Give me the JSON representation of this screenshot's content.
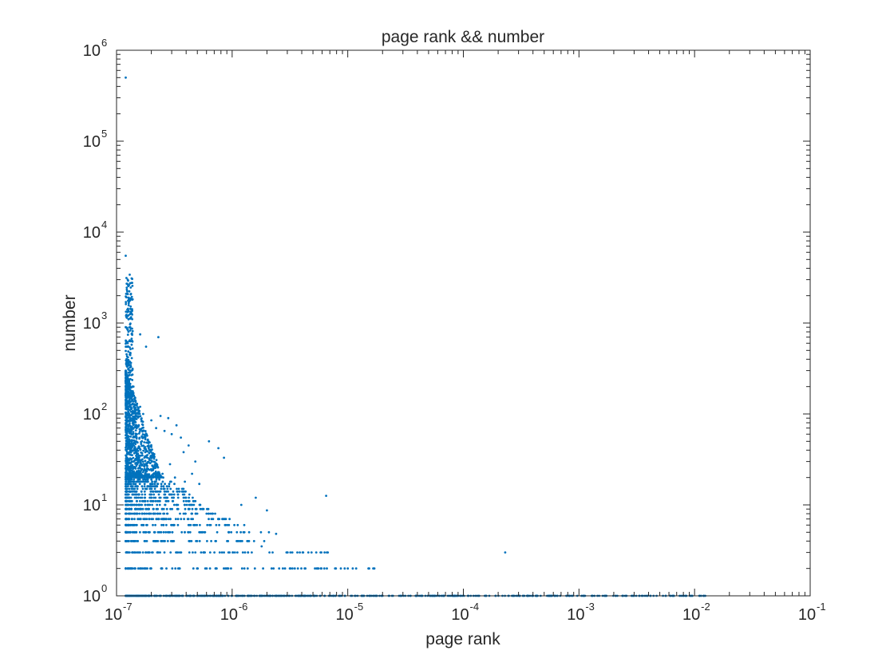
{
  "chart_data": {
    "type": "scatter",
    "title": "page rank && number",
    "xlabel": "page rank",
    "ylabel": "number",
    "xscale": "log",
    "yscale": "log",
    "xlim": [
      1e-07,
      0.1
    ],
    "ylim": [
      1,
      1000000
    ],
    "x_ticks": [
      {
        "value": 1e-07,
        "base": "10",
        "exp": "-7"
      },
      {
        "value": 1e-06,
        "base": "10",
        "exp": "-6"
      },
      {
        "value": 1e-05,
        "base": "10",
        "exp": "-5"
      },
      {
        "value": 0.0001,
        "base": "10",
        "exp": "-4"
      },
      {
        "value": 0.001,
        "base": "10",
        "exp": "-3"
      },
      {
        "value": 0.01,
        "base": "10",
        "exp": "-2"
      },
      {
        "value": 0.1,
        "base": "10",
        "exp": "-1"
      }
    ],
    "y_ticks": [
      {
        "value": 1,
        "base": "10",
        "exp": "0"
      },
      {
        "value": 10,
        "base": "10",
        "exp": "1"
      },
      {
        "value": 100,
        "base": "10",
        "exp": "2"
      },
      {
        "value": 1000,
        "base": "10",
        "exp": "3"
      },
      {
        "value": 10000,
        "base": "10",
        "exp": "4"
      },
      {
        "value": 100000,
        "base": "10",
        "exp": "5"
      },
      {
        "value": 1000000,
        "base": "10",
        "exp": "6"
      }
    ],
    "grid": false,
    "marker_color": "#0072BD",
    "series": [
      {
        "points": [
          [
            1.2e-07,
            500000
          ],
          [
            1.2e-07,
            5500
          ],
          [
            1.25e-07,
            3000
          ],
          [
            1.3e-07,
            3400
          ],
          [
            1.35e-07,
            3100
          ],
          [
            1.28e-07,
            2600
          ],
          [
            1.22e-07,
            2100
          ],
          [
            1.3e-07,
            1800
          ],
          [
            1.24e-07,
            1400
          ],
          [
            1.27e-07,
            1100
          ],
          [
            1.2e-07,
            900
          ],
          [
            1.6e-07,
            750
          ],
          [
            2.3e-07,
            700
          ],
          [
            1.8e-07,
            550
          ],
          [
            1.25e-07,
            600
          ],
          [
            1.3e-07,
            450
          ],
          [
            1.22e-07,
            380
          ],
          [
            1.35e-07,
            300
          ],
          [
            1.28e-07,
            240
          ],
          [
            1.4e-07,
            200
          ],
          [
            1.3e-07,
            170
          ],
          [
            1.45e-07,
            150
          ],
          [
            1.6e-07,
            120
          ],
          [
            1.7e-07,
            100
          ],
          [
            2e-07,
            85
          ],
          [
            2.4e-07,
            95
          ],
          [
            2.8e-07,
            90
          ],
          [
            3.3e-07,
            75
          ],
          [
            2.6e-07,
            65
          ],
          [
            2.2e-07,
            70
          ],
          [
            3e-07,
            60
          ],
          [
            3.6e-07,
            55
          ],
          [
            4.2e-07,
            45
          ],
          [
            6.3e-07,
            50
          ],
          [
            7.6e-07,
            42
          ],
          [
            8.5e-07,
            33
          ],
          [
            4.8e-07,
            30
          ],
          [
            3.8e-07,
            38
          ],
          [
            2.9e-07,
            28
          ],
          [
            2.1e-07,
            35
          ],
          [
            1.5e-07,
            60
          ],
          [
            1.9e-07,
            45
          ],
          [
            2.5e-07,
            22
          ],
          [
            3.2e-07,
            20
          ],
          [
            3.9e-07,
            18
          ],
          [
            4.5e-07,
            22
          ],
          [
            5.2e-07,
            17
          ],
          [
            1.6e-06,
            12
          ],
          [
            1.2e-06,
            10
          ],
          [
            2e-06,
            8.7
          ],
          [
            6.5e-06,
            12.6
          ],
          [
            2.6e-07,
            14
          ],
          [
            3.4e-07,
            13
          ],
          [
            4e-07,
            11
          ],
          [
            5.5e-07,
            9
          ],
          [
            6.8e-07,
            8
          ],
          [
            9.5e-07,
            7
          ],
          [
            1.1e-06,
            5
          ],
          [
            2.4e-06,
            4.8
          ],
          [
            1.4e-06,
            4
          ],
          [
            1.8e-06,
            3.5
          ],
          [
            3e-06,
            3
          ],
          [
            6.6e-06,
            3
          ],
          [
            6.3e-06,
            3
          ],
          [
            0.00023,
            3
          ],
          [
            3.2e-06,
            2
          ],
          [
            4.3e-06,
            2
          ],
          [
            5.4e-06,
            2
          ],
          [
            6.6e-06,
            2
          ],
          [
            7.9e-06,
            2
          ],
          [
            9.4e-06,
            2
          ],
          [
            1e-05,
            2
          ],
          [
            1.7e-05,
            2
          ]
        ],
        "bands": [
          {
            "y": 1,
            "xmin": 1.2e-07,
            "xmax": 0.013
          },
          {
            "y": 2,
            "xmin": 1.2e-07,
            "xmax": 1.7e-05
          },
          {
            "y": 3,
            "xmin": 1.2e-07,
            "xmax": 8e-06
          },
          {
            "y": 4,
            "xmin": 1.2e-07,
            "xmax": 2.3e-06
          },
          {
            "y": 5,
            "xmin": 1.2e-07,
            "xmax": 2.4e-06
          },
          {
            "y": 6,
            "xmin": 1.2e-07,
            "xmax": 1.3e-06
          },
          {
            "y": 7,
            "xmin": 1.2e-07,
            "xmax": 1e-06
          },
          {
            "y": 8,
            "xmin": 1.2e-07,
            "xmax": 9e-07
          },
          {
            "y": 9,
            "xmin": 1.2e-07,
            "xmax": 7e-07
          },
          {
            "y": 10,
            "xmin": 1.2e-07,
            "xmax": 6e-07
          },
          {
            "y": 11,
            "xmin": 1.2e-07,
            "xmax": 5.5e-07
          },
          {
            "y": 12,
            "xmin": 1.2e-07,
            "xmax": 5e-07
          },
          {
            "y": 13,
            "xmin": 1.2e-07,
            "xmax": 4.5e-07
          },
          {
            "y": 14,
            "xmin": 1.2e-07,
            "xmax": 4e-07
          },
          {
            "y": 15,
            "xmin": 1.2e-07,
            "xmax": 3.8e-07
          },
          {
            "y": 16,
            "xmin": 1.2e-07,
            "xmax": 3.5e-07
          },
          {
            "y": 17,
            "xmin": 1.2e-07,
            "xmax": 3.2e-07
          },
          {
            "y": 18,
            "xmin": 1.2e-07,
            "xmax": 3e-07
          },
          {
            "y": 19,
            "xmin": 1.2e-07,
            "xmax": 2.8e-07
          },
          {
            "y": 20,
            "xmin": 1.2e-07,
            "xmax": 2.6e-07
          }
        ],
        "cluster": {
          "xmin": 1.2e-07,
          "xmax": 2.5e-07,
          "ymin": 20,
          "ymax": 300
        }
      }
    ]
  }
}
